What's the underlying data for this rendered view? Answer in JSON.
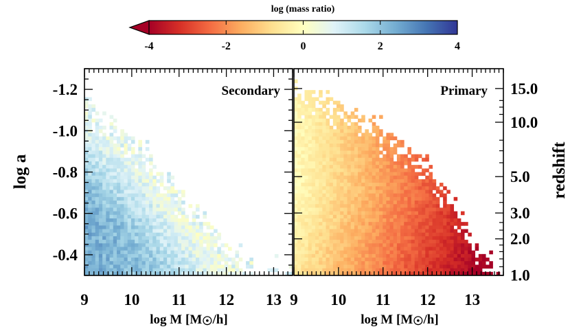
{
  "chart_data": {
    "type": "heatmap",
    "colorbar": {
      "title": "log (mass ratio)",
      "range": [
        -4,
        4
      ],
      "ticks": [
        "-4",
        "-2",
        "0",
        "2",
        "4"
      ],
      "extend": "min",
      "colors": [
        "#a50026",
        "#d73027",
        "#f46d43",
        "#fdae61",
        "#fee090",
        "#ffffbf",
        "#e0f3f8",
        "#abd9e9",
        "#74add1",
        "#4575b4",
        "#313695"
      ]
    },
    "y_axis": {
      "label": "log a",
      "range": [
        -0.3,
        -1.3
      ],
      "ticks": [
        "-1.2",
        "-1.0",
        "-0.8",
        "-0.6",
        "-0.4"
      ]
    },
    "y2_axis": {
      "label": "redshift",
      "ticks": [
        "15.0",
        "10.0",
        "5.0",
        "3.0",
        "2.0",
        "1.0"
      ],
      "tick_log_a": [
        -1.204,
        -1.041,
        -0.778,
        -0.602,
        -0.477,
        -0.301
      ]
    },
    "panels": [
      {
        "name": "Secondary",
        "xlabel_parts": [
          "log M [M",
          "/h]"
        ],
        "x_range": [
          9,
          13.4
        ],
        "xticks": [
          "9",
          "10",
          "11",
          "12",
          "13"
        ],
        "typical_log_ratio": 1.2,
        "description_edge": [
          [
            9,
            -1.14
          ],
          [
            10,
            -0.97
          ],
          [
            11,
            -0.7
          ],
          [
            12,
            -0.45
          ],
          [
            12.6,
            -0.32
          ]
        ]
      },
      {
        "name": "Primary",
        "xlabel_parts": [
          "log M [M",
          "/h]"
        ],
        "x_range": [
          9,
          13.7
        ],
        "xticks": [
          "9",
          "10",
          "11",
          "12",
          "13"
        ],
        "typical_log_ratio": -3.0,
        "description_edge": [
          [
            9,
            -1.2
          ],
          [
            10,
            -1.12
          ],
          [
            11,
            -0.99
          ],
          [
            12,
            -0.86
          ],
          [
            12.7,
            -0.6
          ],
          [
            13.2,
            -0.4
          ],
          [
            13.6,
            -0.3
          ]
        ]
      }
    ]
  }
}
